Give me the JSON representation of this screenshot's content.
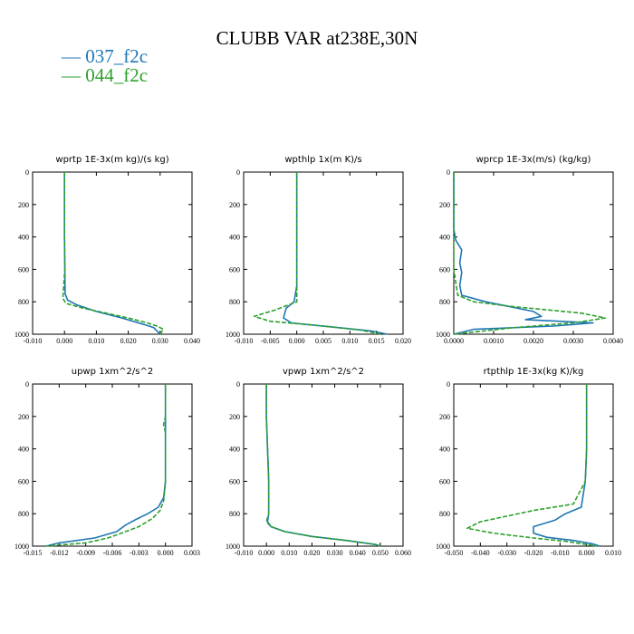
{
  "figure_title": "CLUBB VAR at238E,30N",
  "legend": [
    {
      "label": "— 037_f2c",
      "color": "#1f77b4"
    },
    {
      "label": "— 044_f2c",
      "color": "#2ca02c"
    }
  ],
  "chart_data": [
    {
      "type": "line",
      "title": "wprtp  1E-3x(m kg)/(s kg)",
      "xlim": [
        -0.01,
        0.04
      ],
      "ylim": [
        1000,
        0
      ],
      "xticks": [
        "-0.010",
        "0.000",
        "0.010",
        "0.020",
        "0.030",
        "0.040"
      ],
      "yticks": [
        "0",
        "200",
        "400",
        "600",
        "800",
        "1000"
      ],
      "series": [
        {
          "color": "#1f77b4",
          "style": "solid",
          "x": [
            0.0,
            0.0,
            0.0,
            0.0001,
            0.0002,
            0.001,
            0.004,
            0.01,
            0.018,
            0.025,
            0.028,
            0.029,
            0.03
          ],
          "y": [
            0,
            200,
            400,
            600,
            750,
            790,
            820,
            860,
            900,
            940,
            960,
            980,
            1000
          ]
        },
        {
          "color": "#2ca02c",
          "style": "dashed",
          "x": [
            0.0,
            0.0,
            0.0,
            0.0001,
            -0.0005,
            0.0005,
            0.006,
            0.013,
            0.02,
            0.026,
            0.029,
            0.031,
            0.03
          ],
          "y": [
            0,
            200,
            400,
            600,
            780,
            810,
            840,
            870,
            900,
            930,
            950,
            970,
            1000
          ]
        }
      ]
    },
    {
      "type": "line",
      "title": "wpthlp  1x(m K)/s",
      "xlim": [
        -0.01,
        0.02
      ],
      "ylim": [
        1000,
        0
      ],
      "xticks": [
        "-0.010",
        "-0.005",
        "0.000",
        "0.005",
        "0.010",
        "0.015",
        "0.020"
      ],
      "yticks": [
        "0",
        "200",
        "400",
        "600",
        "800",
        "1000"
      ],
      "series": [
        {
          "color": "#1f77b4",
          "style": "solid",
          "x": [
            0.0,
            0.0,
            0.0,
            0.0,
            -0.0005,
            -0.002,
            -0.0025,
            -0.001,
            0.008,
            0.014,
            0.017
          ],
          "y": [
            0,
            200,
            400,
            700,
            800,
            840,
            900,
            930,
            960,
            980,
            1000
          ]
        },
        {
          "color": "#2ca02c",
          "style": "dashed",
          "x": [
            0.0,
            0.0,
            0.0,
            0.0,
            0.0,
            -0.004,
            -0.008,
            -0.005,
            0.005,
            0.012,
            0.016
          ],
          "y": [
            0,
            200,
            400,
            700,
            800,
            850,
            890,
            920,
            950,
            975,
            1000
          ]
        }
      ]
    },
    {
      "type": "line",
      "title": "wprcp  1E-3x(m/s) (kg/kg)",
      "xlim": [
        0.0,
        0.004
      ],
      "ylim": [
        1000,
        0
      ],
      "xticks": [
        "0.0000",
        "0.0010",
        "0.0020",
        "0.0030",
        "0.0040"
      ],
      "yticks": [
        "0",
        "200",
        "400",
        "600",
        "800",
        "1000"
      ],
      "series": [
        {
          "color": "#1f77b4",
          "style": "solid",
          "x": [
            0.0,
            0.0,
            5e-05,
            0.0002,
            0.00015,
            0.0002,
            0.00015,
            0.0002,
            0.0008,
            0.002,
            0.0022,
            0.0018,
            0.0035,
            0.0025,
            0.0005,
            0.0
          ],
          "y": [
            0,
            350,
            420,
            480,
            560,
            620,
            700,
            760,
            800,
            860,
            890,
            910,
            930,
            950,
            970,
            1000
          ]
        },
        {
          "color": "#2ca02c",
          "style": "dashed",
          "x": [
            0.0,
            0.0,
            0.0,
            0.0001,
            0.0005,
            0.0015,
            0.0032,
            0.0038,
            0.003,
            0.0015,
            0.0
          ],
          "y": [
            0,
            400,
            600,
            760,
            800,
            830,
            870,
            900,
            930,
            960,
            1000
          ]
        }
      ]
    },
    {
      "type": "line",
      "title": "upwp  1xm^2/s^2",
      "xlim": [
        -0.015,
        0.003
      ],
      "ylim": [
        1000,
        0
      ],
      "xticks": [
        "-0.015",
        "-0.012",
        "-0.009",
        "-0.006",
        "-0.003",
        "0.000",
        "0.003"
      ],
      "yticks": [
        "0",
        "200",
        "400",
        "600",
        "800",
        "1000"
      ],
      "series": [
        {
          "color": "#1f77b4",
          "style": "solid",
          "x": [
            0.0,
            0.0,
            0.0,
            0.0,
            0.0,
            -0.0002,
            -0.0008,
            -0.002,
            -0.0035,
            -0.0045,
            -0.0055,
            -0.008,
            -0.012,
            -0.0135
          ],
          "y": [
            0,
            250,
            400,
            500,
            600,
            700,
            760,
            800,
            840,
            870,
            910,
            950,
            980,
            1000
          ]
        },
        {
          "color": "#2ca02c",
          "style": "dashed",
          "x": [
            0.0,
            0.0,
            -0.0002,
            0.0,
            0.0,
            0.0,
            -0.0002,
            -0.0006,
            -0.0015,
            -0.003,
            -0.005,
            -0.0065,
            -0.009,
            -0.0135
          ],
          "y": [
            0,
            200,
            250,
            300,
            450,
            600,
            720,
            780,
            830,
            880,
            920,
            950,
            980,
            1000
          ]
        }
      ]
    },
    {
      "type": "line",
      "title": "vpwp  1xm^2/s^2",
      "xlim": [
        -0.01,
        0.06
      ],
      "ylim": [
        1000,
        0
      ],
      "xticks": [
        "-0.010",
        "0.000",
        "0.010",
        "0.020",
        "0.030",
        "0.040",
        "0.050",
        "0.060"
      ],
      "yticks": [
        "0",
        "200",
        "400",
        "600",
        "800",
        "1000"
      ],
      "series": [
        {
          "color": "#1f77b4",
          "style": "solid",
          "x": [
            0.0,
            0.0,
            0.0005,
            0.001,
            0.001,
            0.0005,
            0.002,
            0.008,
            0.02,
            0.035,
            0.048,
            0.05
          ],
          "y": [
            0,
            200,
            400,
            600,
            800,
            850,
            880,
            910,
            940,
            965,
            990,
            1000
          ]
        },
        {
          "color": "#2ca02c",
          "style": "dashed",
          "x": [
            0.0,
            0.0,
            0.0005,
            0.001,
            0.001,
            0.0,
            0.002,
            0.008,
            0.02,
            0.035,
            0.048,
            0.05
          ],
          "y": [
            0,
            200,
            400,
            600,
            800,
            850,
            880,
            910,
            940,
            965,
            990,
            1000
          ]
        }
      ]
    },
    {
      "type": "line",
      "title": "rtpthlp  1E-3x(kg K)/kg",
      "xlim": [
        -0.05,
        0.01
      ],
      "ylim": [
        1000,
        0
      ],
      "xticks": [
        "-0.050",
        "-0.040",
        "-0.030",
        "-0.020",
        "-0.010",
        "0.000",
        "0.010"
      ],
      "yticks": [
        "0",
        "200",
        "400",
        "600",
        "800",
        "1000"
      ],
      "series": [
        {
          "color": "#1f77b4",
          "style": "solid",
          "x": [
            0.0,
            0.0,
            0.0,
            -0.0005,
            -0.002,
            -0.008,
            -0.012,
            -0.02,
            -0.02,
            -0.015,
            -0.005,
            0.002,
            0.005
          ],
          "y": [
            0,
            200,
            400,
            600,
            760,
            800,
            840,
            880,
            920,
            945,
            965,
            985,
            1000
          ]
        },
        {
          "color": "#2ca02c",
          "style": "dashed",
          "x": [
            0.0,
            0.0,
            0.0,
            -0.0005,
            -0.005,
            -0.02,
            -0.04,
            -0.045,
            -0.035,
            -0.02,
            -0.008,
            0.0,
            0.004
          ],
          "y": [
            0,
            200,
            400,
            600,
            740,
            780,
            850,
            890,
            920,
            950,
            970,
            990,
            1000
          ]
        }
      ]
    }
  ]
}
